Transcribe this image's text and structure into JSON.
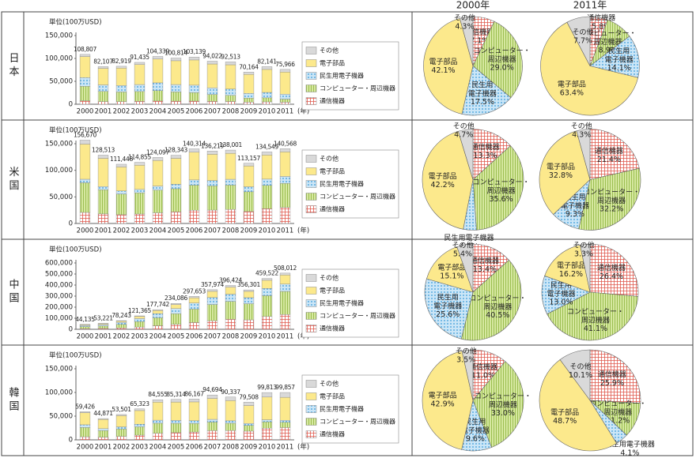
{
  "chart_data": [
    {
      "type": "bar",
      "title": "日本",
      "y_label": "単位(100万USD)",
      "x_label": "(年)",
      "categories": [
        "2000",
        "2001",
        "2002",
        "2003",
        "2004",
        "2005",
        "2006",
        "2007",
        "2008",
        "2009",
        "2010",
        "2011"
      ],
      "ylim": [
        0,
        150000
      ],
      "yticks": [
        0,
        {
          "value": 50000,
          "label": "50,000"
        },
        {
          "value": 100000,
          "label": "100,000"
        },
        {
          "value": 150000,
          "label": "150,000"
        }
      ],
      "total_labels": [
        "108,807",
        "82,107",
        "82,919",
        "91,435",
        "104,339",
        "100,814",
        "103,139",
        "94,022",
        "92,513",
        "70,164",
        "82,141",
        "75,966"
      ],
      "series": [
        {
          "name": "通信機器",
          "color": "#ffffff",
          "pattern": "grid",
          "pattern_color": "#e05a4e",
          "values": [
            7700,
            5800,
            5800,
            6300,
            7100,
            6800,
            6900,
            6200,
            6000,
            4500,
            5200,
            4400
          ]
        },
        {
          "name": "コンピューター・周辺機器",
          "color": "#d6e8a0",
          "pattern": "stripes",
          "pattern_color": "#8cb43c",
          "values": [
            31600,
            22300,
            21000,
            21500,
            22600,
            20100,
            18600,
            15200,
            13300,
            8800,
            8800,
            6800
          ]
        },
        {
          "name": "民生用電子機器",
          "color": "#cbe6f7",
          "pattern": "dots",
          "pattern_color": "#3a9ad9",
          "values": [
            19000,
            14100,
            14000,
            15200,
            17000,
            16100,
            16100,
            14400,
            13900,
            10300,
            11800,
            10700
          ]
        },
        {
          "name": "電子部品",
          "color": "#fce98c",
          "pattern": null,
          "pattern_color": null,
          "values": [
            45800,
            36100,
            38000,
            43600,
            51900,
            52000,
            55100,
            52100,
            53000,
            41600,
            50200,
            48300
          ]
        },
        {
          "name": "その他",
          "color": "#d9d9d9",
          "pattern": null,
          "pattern_color": null,
          "values": [
            4700,
            3800,
            4100,
            4800,
            5700,
            5800,
            6400,
            6100,
            6300,
            5000,
            6100,
            5800
          ]
        }
      ]
    },
    {
      "type": "pie",
      "title": "2000年",
      "categories": [
        "通信機器",
        "コンピューター・\n周辺機器",
        "民生用\n電子機器",
        "電子部品",
        "その他"
      ],
      "values": [
        7.1,
        29.0,
        17.5,
        42.1,
        4.3
      ],
      "value_labels": [
        "7.1%",
        "29.0%",
        "17.5%",
        "42.1%",
        "4.3%"
      ],
      "colors": [
        "#ffffff",
        "#d6e8a0",
        "#cbe6f7",
        "#fce98c",
        "#d9d9d9"
      ],
      "patterns": [
        "grid",
        "stripes",
        "dots",
        null,
        null
      ],
      "pattern_colors": [
        "#e05a4e",
        "#8cb43c",
        "#3a9ad9",
        null,
        null
      ]
    },
    {
      "type": "pie",
      "title": "2011年",
      "categories": [
        "通信機器",
        "コンピューター・\n周辺機器",
        "民生用\n電子機器",
        "電子部品",
        "その他"
      ],
      "values": [
        5.8,
        8.9,
        14.1,
        63.4,
        7.7
      ],
      "value_labels": [
        "5.8%",
        "8.9%",
        "14.1%",
        "63.4%",
        "7.7%"
      ],
      "colors": [
        "#ffffff",
        "#d6e8a0",
        "#cbe6f7",
        "#fce98c",
        "#d9d9d9"
      ],
      "patterns": [
        "grid",
        "stripes",
        "dots",
        null,
        null
      ],
      "pattern_colors": [
        "#e05a4e",
        "#8cb43c",
        "#3a9ad9",
        null,
        null
      ]
    },
    {
      "type": "bar",
      "title": "米国",
      "y_label": "単位(100万USD)",
      "x_label": "(年)",
      "categories": [
        "2000",
        "2001",
        "2002",
        "2003",
        "2004",
        "2005",
        "2006",
        "2007",
        "2008",
        "2009",
        "2010",
        "2011"
      ],
      "ylim": [
        0,
        150000
      ],
      "yticks": [
        0,
        {
          "value": 50000,
          "label": "50,000"
        },
        {
          "value": 100000,
          "label": "100,000"
        },
        {
          "value": 150000,
          "label": "150,000"
        }
      ],
      "total_labels": [
        "156,670",
        "128,513",
        "111,448",
        "114,855",
        "124,097",
        "128,343",
        "140,314",
        "136,219",
        "138,001",
        "113,157",
        "134,549",
        "140,568"
      ],
      "series": [
        {
          "name": "通信機器",
          "color": "#ffffff",
          "pattern": "grid",
          "pattern_color": "#e05a4e",
          "values": [
            20800,
            18000,
            16500,
            17800,
            20100,
            21800,
            24800,
            25200,
            26500,
            22500,
            27900,
            30100
          ]
        },
        {
          "name": "コンピューター・周辺機器",
          "color": "#d6e8a0",
          "pattern": "stripes",
          "pattern_color": "#8cb43c",
          "values": [
            55800,
            45400,
            39000,
            39900,
            42700,
            43600,
            47300,
            45500,
            45700,
            37100,
            43700,
            45300
          ]
        },
        {
          "name": "民生用電子機器",
          "color": "#cbe6f7",
          "pattern": "dots",
          "pattern_color": "#3a9ad9",
          "values": [
            6600,
            6000,
            5700,
            6400,
            7600,
            8300,
            9800,
            10100,
            10900,
            9500,
            11800,
            13100
          ]
        },
        {
          "name": "電子部品",
          "color": "#fce98c",
          "pattern": null,
          "pattern_color": null,
          "values": [
            66100,
            53100,
            45100,
            45500,
            48000,
            48800,
            52100,
            49300,
            48800,
            39100,
            45300,
            46100
          ]
        },
        {
          "name": "その他",
          "color": "#d9d9d9",
          "pattern": null,
          "pattern_color": null,
          "values": [
            7400,
            6000,
            5100,
            5300,
            5700,
            5800,
            6300,
            6100,
            6100,
            5000,
            5800,
            6000
          ]
        }
      ]
    },
    {
      "type": "pie",
      "categories": [
        "通信機器",
        "コンピューター・\n周辺機器",
        "民生用電子機器",
        "電子部品",
        "その他"
      ],
      "values": [
        13.3,
        35.6,
        4.2,
        42.2,
        4.7
      ],
      "value_labels": [
        "13.3%",
        "35.6%",
        "4.2%",
        "42.2%",
        "4.7%"
      ],
      "colors": [
        "#ffffff",
        "#d6e8a0",
        "#cbe6f7",
        "#fce98c",
        "#d9d9d9"
      ],
      "patterns": [
        "grid",
        "stripes",
        "dots",
        null,
        null
      ],
      "pattern_colors": [
        "#e05a4e",
        "#8cb43c",
        "#3a9ad9",
        null,
        null
      ]
    },
    {
      "type": "pie",
      "categories": [
        "通信機器",
        "コンピューター・\n周辺機器",
        "民生用\n電子機器",
        "電子部品",
        "その他"
      ],
      "values": [
        21.4,
        32.2,
        9.3,
        32.8,
        4.3
      ],
      "value_labels": [
        "21.4%",
        "32.2%",
        "9.3%",
        "32.8%",
        "4.3%"
      ],
      "colors": [
        "#ffffff",
        "#d6e8a0",
        "#cbe6f7",
        "#fce98c",
        "#d9d9d9"
      ],
      "patterns": [
        "grid",
        "stripes",
        "dots",
        null,
        null
      ],
      "pattern_colors": [
        "#e05a4e",
        "#8cb43c",
        "#3a9ad9",
        null,
        null
      ]
    },
    {
      "type": "bar",
      "title": "中国",
      "y_label": "単位(100万USD)",
      "x_label": "(年)",
      "categories": [
        "2000",
        "2001",
        "2002",
        "2003",
        "2004",
        "2005",
        "2006",
        "2007",
        "2008",
        "2009",
        "2010",
        "2011"
      ],
      "ylim": [
        0,
        600000
      ],
      "yticks": [
        0,
        {
          "value": 100000,
          "label": "100,000"
        },
        {
          "value": 200000,
          "label": "200,000"
        },
        {
          "value": 300000,
          "label": "300,000"
        },
        {
          "value": 400000,
          "label": "400,000"
        },
        {
          "value": 500000,
          "label": "500,000"
        },
        {
          "value": 600000,
          "label": "600,000"
        }
      ],
      "total_labels": [
        "44,135",
        "53,221",
        "78,243",
        "121,365",
        "177,742",
        "234,086",
        "297,653",
        "357,974",
        "396,424",
        "356,301",
        "459,522",
        "508,012"
      ],
      "series": [
        {
          "name": "通信機器",
          "color": "#ffffff",
          "pattern": "grid",
          "pattern_color": "#e05a4e",
          "values": [
            5900,
            7800,
            12400,
            20500,
            32200,
            45200,
            61000,
            77700,
            90400,
            85500,
            115800,
            134100
          ]
        },
        {
          "name": "コンピューター・周辺機器",
          "color": "#d6e8a0",
          "pattern": "stripes",
          "pattern_color": "#8cb43c",
          "values": [
            17900,
            21600,
            31800,
            49400,
            72300,
            95500,
            121400,
            146400,
            162100,
            146100,
            188400,
            208800
          ]
        },
        {
          "name": "民生用電子機器",
          "color": "#cbe6f7",
          "pattern": "dots",
          "pattern_color": "#3a9ad9",
          "values": [
            11300,
            13000,
            18200,
            26900,
            37300,
            46600,
            55700,
            63000,
            65000,
            54500,
            64800,
            66000
          ]
        },
        {
          "name": "電子部品",
          "color": "#fce98c",
          "pattern": null,
          "pattern_color": null,
          "values": [
            6600,
            8000,
            11900,
            18800,
            27700,
            36500,
            46800,
            56200,
            63400,
            57000,
            74400,
            82300
          ]
        },
        {
          "name": "その他",
          "color": "#d9d9d9",
          "pattern": null,
          "pattern_color": null,
          "values": [
            2400,
            2800,
            3900,
            5800,
            8200,
            10300,
            12800,
            14700,
            15500,
            13200,
            16100,
            16800
          ]
        }
      ]
    },
    {
      "type": "pie",
      "categories": [
        "通信機器",
        "コンピューター・\n周辺機器",
        "民生用\n電子機器",
        "電子部品",
        "その他"
      ],
      "values": [
        13.4,
        40.5,
        25.6,
        15.1,
        5.4
      ],
      "value_labels": [
        "13.4%",
        "40.5%",
        "25.6%",
        "15.1%",
        "5.4%"
      ],
      "colors": [
        "#ffffff",
        "#d6e8a0",
        "#cbe6f7",
        "#fce98c",
        "#d9d9d9"
      ],
      "patterns": [
        "grid",
        "stripes",
        "dots",
        null,
        null
      ],
      "pattern_colors": [
        "#e05a4e",
        "#8cb43c",
        "#3a9ad9",
        null,
        null
      ]
    },
    {
      "type": "pie",
      "categories": [
        "通信機器",
        "コンピューター・\n周辺機器",
        "民生用\n電子機器",
        "電子部品",
        "その他"
      ],
      "values": [
        26.4,
        41.1,
        13.0,
        16.2,
        3.3
      ],
      "value_labels": [
        "26.4%",
        "41.1%",
        "13.0%",
        "16.2%",
        "3.3%"
      ],
      "colors": [
        "#ffffff",
        "#d6e8a0",
        "#cbe6f7",
        "#fce98c",
        "#d9d9d9"
      ],
      "patterns": [
        "grid",
        "stripes",
        "dots",
        null,
        null
      ],
      "pattern_colors": [
        "#e05a4e",
        "#8cb43c",
        "#3a9ad9",
        null,
        null
      ]
    },
    {
      "type": "bar",
      "title": "韓国",
      "y_label": "単位(100万USD)",
      "x_label": "(年)",
      "categories": [
        "2000",
        "2001",
        "2002",
        "2003",
        "2004",
        "2005",
        "2006",
        "2007",
        "2008",
        "2009",
        "2010",
        "2011"
      ],
      "ylim": [
        0,
        150000
      ],
      "yticks": [
        0,
        {
          "value": 50000,
          "label": "50,000"
        },
        {
          "value": 100000,
          "label": "100,000"
        },
        {
          "value": 150000,
          "label": "150,000"
        }
      ],
      "total_labels": [
        "59,426",
        "44,871",
        "53,501",
        "65,323",
        "84,555",
        "85,314",
        "86,167",
        "94,694",
        "90,337",
        "79,508",
        "99,813",
        "99,857"
      ],
      "series": [
        {
          "name": "通信機器",
          "color": "#ffffff",
          "pattern": "grid",
          "pattern_color": "#e05a4e",
          "values": [
            6500,
            5600,
            7300,
            9900,
            13900,
            15200,
            16500,
            19400,
            19700,
            18400,
            24600,
            25900
          ]
        },
        {
          "name": "コンピューター・周辺機器",
          "color": "#d6e8a0",
          "pattern": "stripes",
          "pattern_color": "#8cb43c",
          "values": [
            19600,
            13900,
            15500,
            17700,
            21200,
            19700,
            18200,
            18100,
            15400,
            12100,
            13200,
            11200
          ]
        },
        {
          "name": "民生用電子機器",
          "color": "#cbe6f7",
          "pattern": "dots",
          "pattern_color": "#3a9ad9",
          "values": [
            5700,
            4100,
            4600,
            5300,
            6400,
            6100,
            5700,
            5800,
            5100,
            4100,
            4600,
            4100
          ]
        },
        {
          "name": "電子部品",
          "color": "#fce98c",
          "pattern": null,
          "pattern_color": null,
          "values": [
            25500,
            19500,
            23600,
            28900,
            38100,
            38800,
            39700,
            44100,
            42600,
            37800,
            47900,
            48600
          ]
        },
        {
          "name": "その他",
          "color": "#d9d9d9",
          "pattern": null,
          "pattern_color": null,
          "values": [
            2100,
            1800,
            2500,
            3500,
            5000,
            5500,
            6100,
            7300,
            7500,
            7100,
            9500,
            10100
          ]
        }
      ]
    },
    {
      "type": "pie",
      "categories": [
        "通信機器",
        "コンピューター・\n周辺機器",
        "民生用\n電子機器",
        "電子部品",
        "その他"
      ],
      "values": [
        11.0,
        33.0,
        9.6,
        42.9,
        3.5
      ],
      "value_labels": [
        "11.0%",
        "33.0%",
        "9.6%",
        "42.9%",
        "3.5%"
      ],
      "colors": [
        "#ffffff",
        "#d6e8a0",
        "#cbe6f7",
        "#fce98c",
        "#d9d9d9"
      ],
      "patterns": [
        "grid",
        "stripes",
        "dots",
        null,
        null
      ],
      "pattern_colors": [
        "#e05a4e",
        "#8cb43c",
        "#3a9ad9",
        null,
        null
      ]
    },
    {
      "type": "pie",
      "categories": [
        "通信機器",
        "コンピューター・\n周辺機器",
        "民生用電子機器",
        "電子部品",
        "その他"
      ],
      "values": [
        25.9,
        11.2,
        4.1,
        48.7,
        10.1
      ],
      "value_labels": [
        "25.9%",
        "11.2%",
        "4.1%",
        "48.7%",
        "10.1%"
      ],
      "colors": [
        "#ffffff",
        "#d6e8a0",
        "#cbe6f7",
        "#fce98c",
        "#d9d9d9"
      ],
      "patterns": [
        "grid",
        "stripes",
        "dots",
        null,
        null
      ],
      "pattern_colors": [
        "#e05a4e",
        "#8cb43c",
        "#3a9ad9",
        null,
        null
      ]
    }
  ]
}
